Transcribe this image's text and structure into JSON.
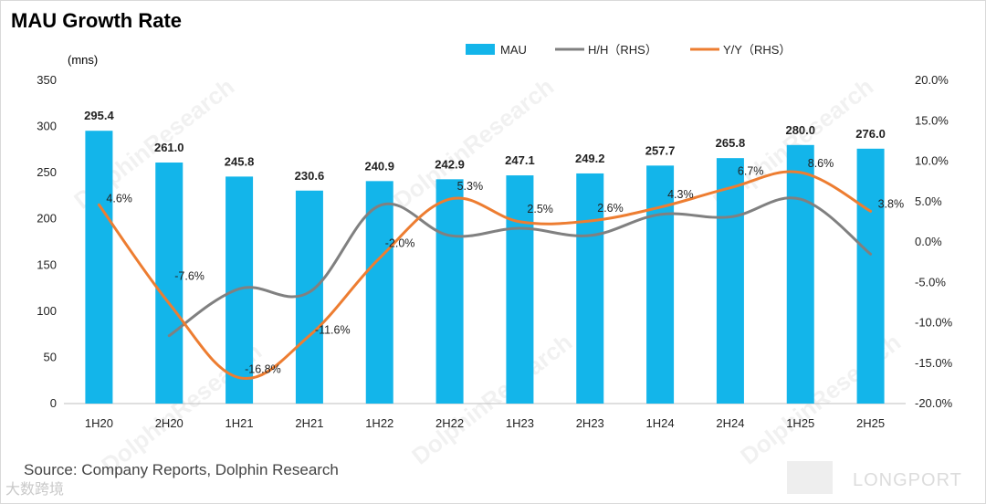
{
  "title": "MAU Growth Rate",
  "unit_label": "(mns)",
  "source": "Source: Company Reports, Dolphin Research",
  "watermark_left": "大数跨境",
  "watermark_right": "LONGPORT",
  "watermark_diagonal": "DolphinResearch",
  "chart_data": {
    "type": "bar",
    "categories": [
      "1H20",
      "2H20",
      "1H21",
      "2H21",
      "1H22",
      "2H22",
      "1H23",
      "2H23",
      "1H24",
      "2H24",
      "1H25",
      "2H25"
    ],
    "left_axis": {
      "ylim": [
        0,
        350
      ],
      "ticks": [
        0,
        50,
        100,
        150,
        200,
        250,
        300,
        350
      ]
    },
    "right_axis": {
      "ylim": [
        -20,
        20
      ],
      "ticks": [
        "-20.0%",
        "-15.0%",
        "-10.0%",
        "-5.0%",
        "0.0%",
        "5.0%",
        "10.0%",
        "15.0%",
        "20.0%"
      ]
    },
    "series": [
      {
        "name": "MAU",
        "type": "bar",
        "axis": "left",
        "color": "#13b5ea",
        "values": [
          295.4,
          261.0,
          245.8,
          230.6,
          240.9,
          242.9,
          247.1,
          249.2,
          257.7,
          265.8,
          280.0,
          276.0
        ],
        "labels": [
          "295.4",
          "261.0",
          "245.8",
          "230.6",
          "240.9",
          "242.9",
          "247.1",
          "249.2",
          "257.7",
          "265.8",
          "280.0",
          "276.0"
        ]
      },
      {
        "name": "H/H（RHS）",
        "type": "line",
        "axis": "right",
        "color": "#808080",
        "values": [
          null,
          -11.6,
          -5.8,
          -6.2,
          4.5,
          0.8,
          1.7,
          0.8,
          3.4,
          3.1,
          5.3,
          -1.5
        ]
      },
      {
        "name": "Y/Y（RHS）",
        "type": "line",
        "axis": "right",
        "color": "#ed7d31",
        "values": [
          4.6,
          -7.6,
          -16.8,
          -11.6,
          -2.0,
          5.3,
          2.5,
          2.6,
          4.3,
          6.7,
          8.6,
          3.8
        ],
        "labels": [
          "4.6%",
          "-7.6%",
          "-16.8%",
          "-11.6%",
          "-2.0%",
          "5.3%",
          "2.5%",
          "2.6%",
          "4.3%",
          "6.7%",
          "8.6%",
          "3.8%"
        ]
      }
    ],
    "legend": "top-center",
    "grid": false
  }
}
